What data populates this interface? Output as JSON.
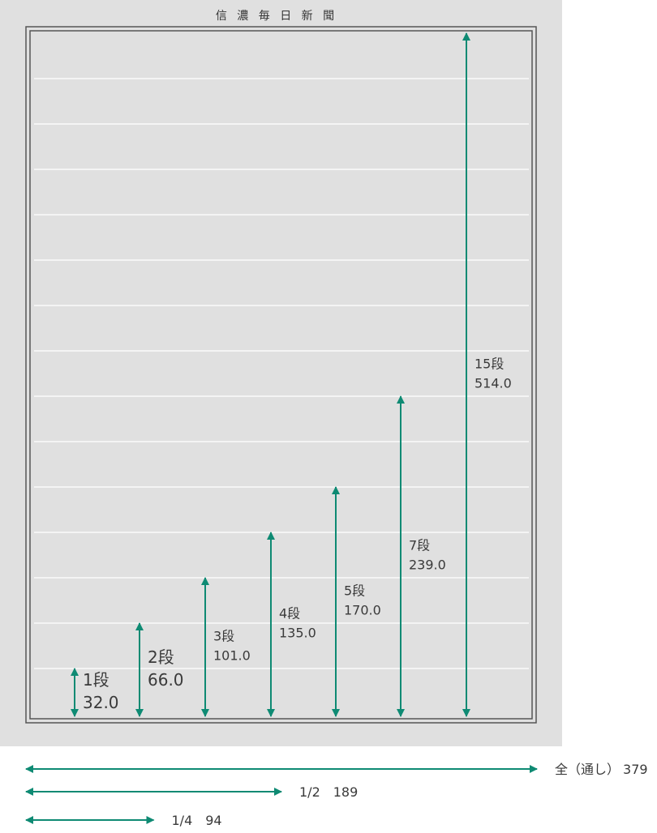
{
  "newspaper": {
    "masthead": "信 濃 毎 日 新 聞",
    "total_rows": 15
  },
  "colors": {
    "page_bg": "#e0e0e0",
    "frame": "#555555",
    "row_line": "#ffffff",
    "arrow": "#0e8a73",
    "label_text": "#3a3a3a"
  },
  "height_arrows": [
    {
      "dan": 1,
      "label": "1段",
      "value": "32.0"
    },
    {
      "dan": 2,
      "label": "2段",
      "value": "66.0"
    },
    {
      "dan": 3,
      "label": "3段",
      "value": "101.0"
    },
    {
      "dan": 4,
      "label": "4段",
      "value": "135.0"
    },
    {
      "dan": 5,
      "label": "5段",
      "value": "170.0"
    },
    {
      "dan": 7,
      "label": "7段",
      "value": "239.0"
    },
    {
      "dan": 15,
      "label": "15段",
      "value": "514.0"
    }
  ],
  "width_arrows": [
    {
      "fraction": 1.0,
      "label": "全（通し）",
      "value": "379"
    },
    {
      "fraction": 0.5,
      "label": "1/2",
      "value": "189"
    },
    {
      "fraction": 0.25,
      "label": "1/4",
      "value": "94"
    }
  ]
}
